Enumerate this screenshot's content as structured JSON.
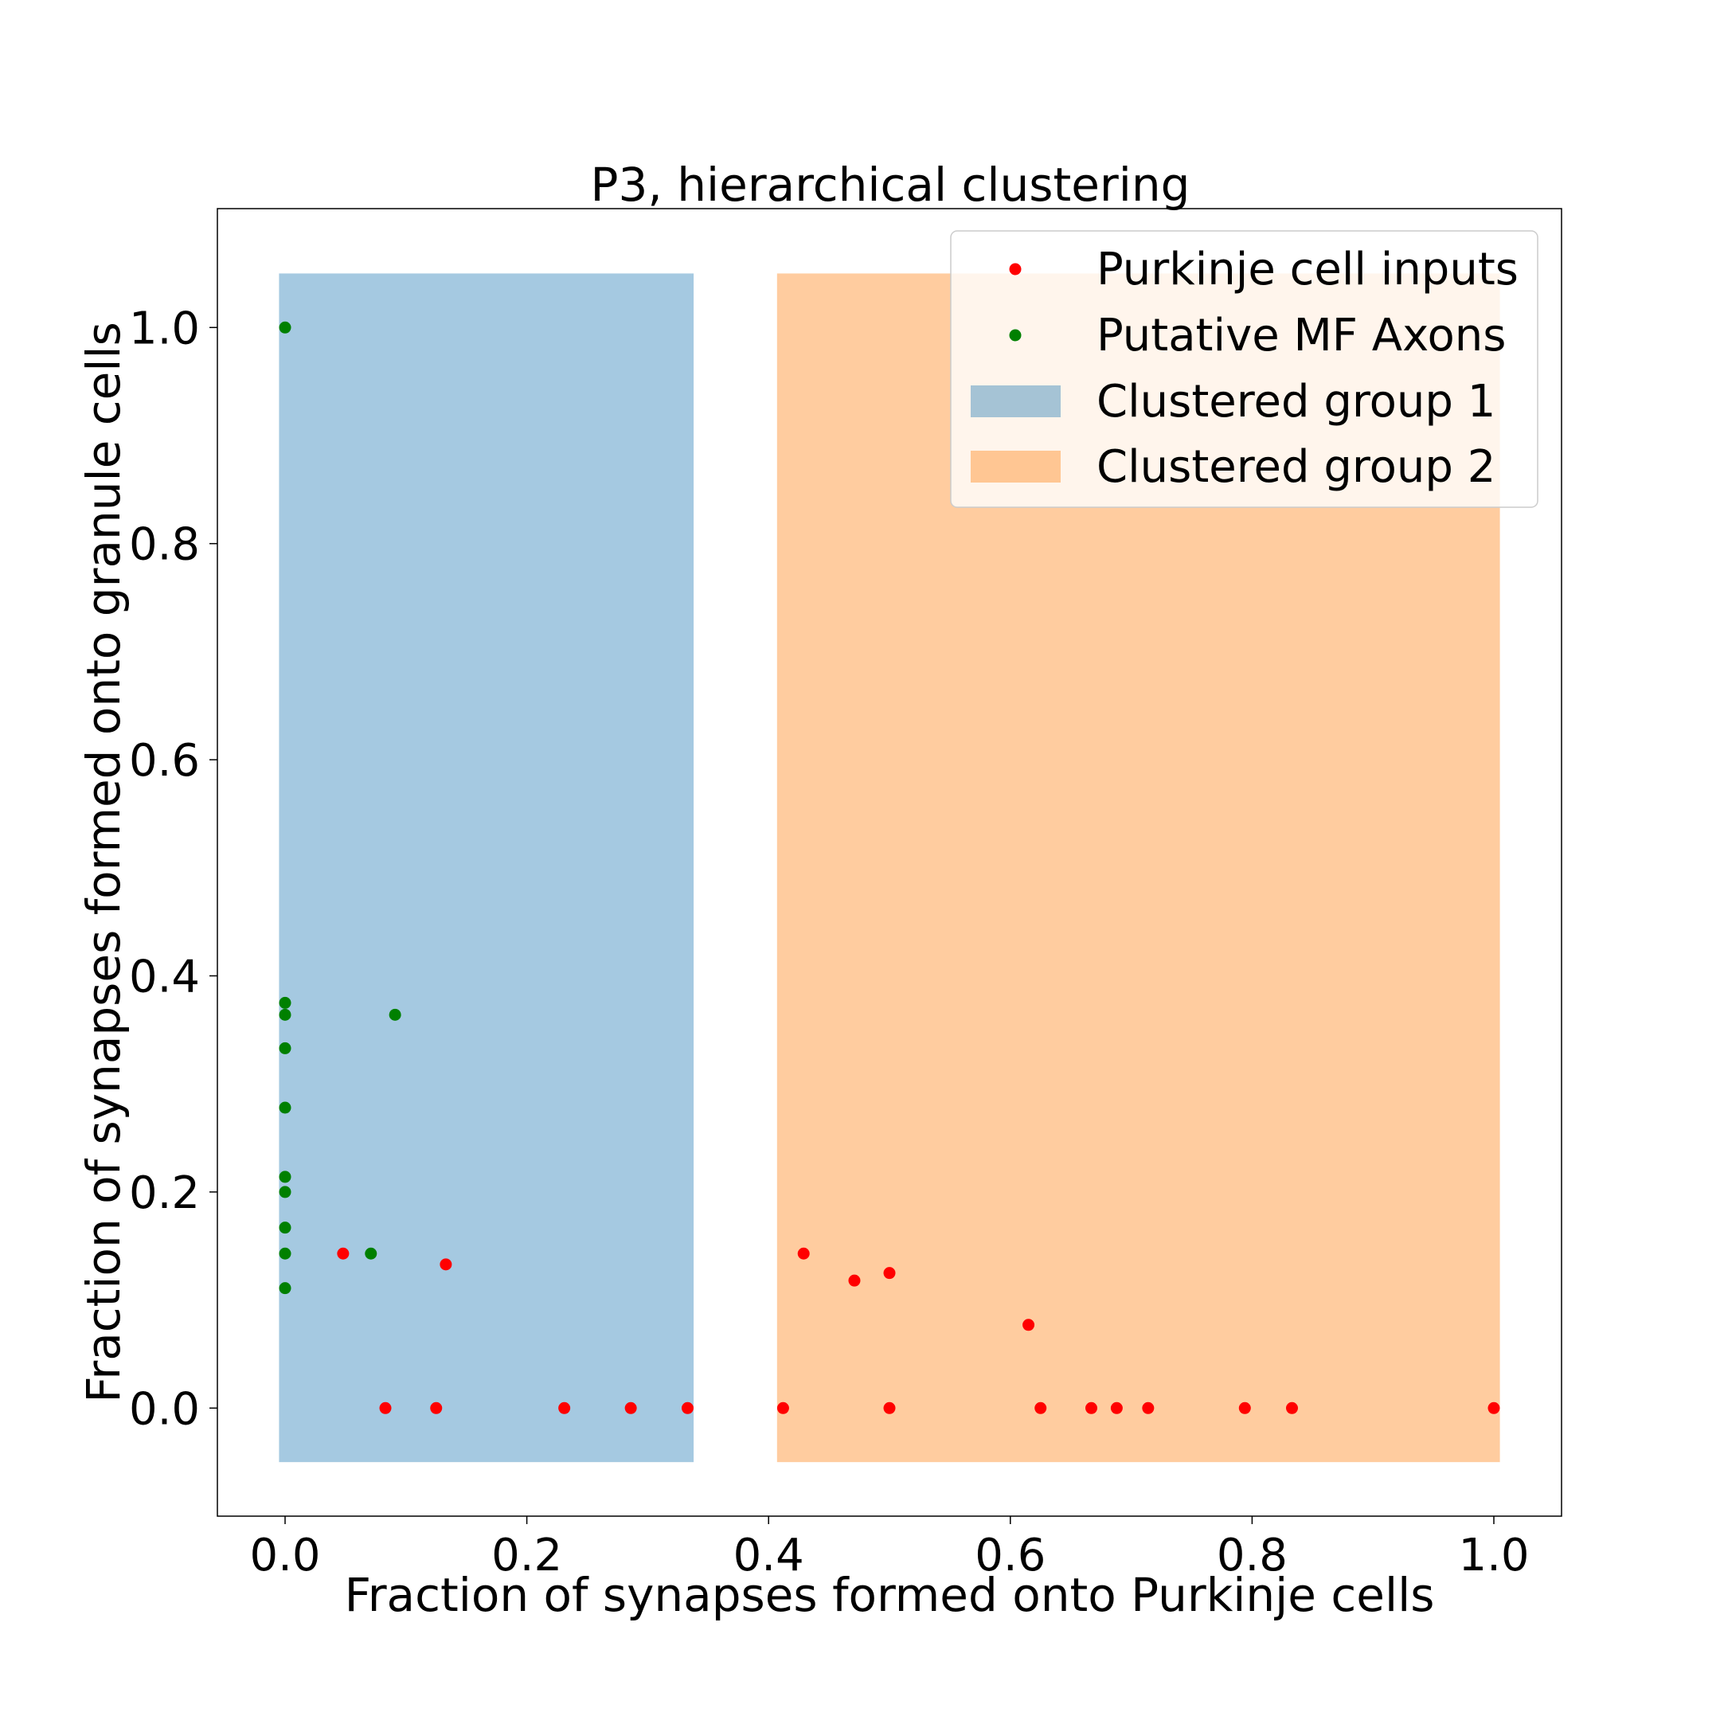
{
  "chart_data": {
    "type": "scatter",
    "title": "P3, hierarchical clustering",
    "xlabel": "Fraction of synapses formed onto Purkinje cells",
    "ylabel": "Fraction of synapses formed onto granule cells",
    "xlim": [
      -0.056,
      1.056
    ],
    "ylim": [
      -0.1,
      1.11
    ],
    "xticks": [
      "0.0",
      "0.2",
      "0.4",
      "0.6",
      "0.8",
      "1.0"
    ],
    "yticks": [
      "0.0",
      "0.2",
      "0.4",
      "0.6",
      "0.8",
      "1.0"
    ],
    "grid": false,
    "legend_position": "top-right",
    "regions": [
      {
        "name": "Clustered group 1",
        "color": "#1f77b4",
        "alpha": 0.4,
        "x": [
          -0.005,
          0.338
        ],
        "y": [
          -0.05,
          1.05
        ]
      },
      {
        "name": "Clustered group 2",
        "color": "#ff7f0e",
        "alpha": 0.4,
        "x": [
          0.407,
          1.005
        ],
        "y": [
          -0.05,
          1.05
        ]
      }
    ],
    "series": [
      {
        "name": "Purkinje cell inputs",
        "color": "#ff0000",
        "x": [
          0.048,
          0.083,
          0.125,
          0.133,
          0.231,
          0.286,
          0.333,
          0.412,
          0.429,
          0.471,
          0.5,
          0.5,
          0.615,
          0.625,
          0.667,
          0.688,
          0.714,
          0.794,
          0.833,
          1.0
        ],
        "y": [
          0.143,
          0.0,
          0.0,
          0.133,
          0.0,
          0.0,
          0.0,
          0.0,
          0.143,
          0.118,
          0.125,
          0.0,
          0.077,
          0.0,
          0.0,
          0.0,
          0.0,
          0.0,
          0.0,
          0.0
        ]
      },
      {
        "name": "Putative MF Axons",
        "color": "#008000",
        "x": [
          0.0,
          0.0,
          0.0,
          0.0,
          0.0,
          0.0,
          0.0,
          0.0,
          0.0,
          0.0,
          0.091,
          0.071
        ],
        "y": [
          1.0,
          0.375,
          0.364,
          0.333,
          0.278,
          0.214,
          0.2,
          0.167,
          0.143,
          0.111,
          0.364,
          0.143
        ]
      }
    ]
  }
}
